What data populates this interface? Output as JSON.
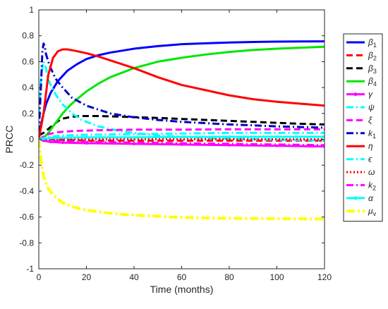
{
  "chart_data": {
    "type": "line",
    "title": "",
    "xlabel": "Time (months)",
    "ylabel": "PRCC",
    "xlim": [
      0,
      120
    ],
    "ylim": [
      -1,
      1
    ],
    "xticks": [
      0,
      20,
      40,
      60,
      80,
      100,
      120
    ],
    "yticks": [
      -1,
      -0.8,
      -0.6,
      -0.4,
      -0.2,
      0,
      0.2,
      0.4,
      0.6,
      0.8,
      1
    ],
    "xtick_labels": [
      "0",
      "20",
      "40",
      "60",
      "80",
      "100",
      "120"
    ],
    "ytick_labels": [
      "-1",
      "-0.8",
      "-0.6",
      "-0.4",
      "-0.2",
      "0",
      "0.2",
      "0.4",
      "0.6",
      "0.8",
      "1"
    ],
    "grid": false,
    "legend_position": "outside-right",
    "series": [
      {
        "name": "β1",
        "base": "β",
        "sub": "1",
        "color": "#0000ff",
        "style": "solid",
        "width": 3,
        "x": [
          0,
          1,
          2,
          3,
          5,
          8,
          12,
          16,
          20,
          25,
          30,
          40,
          50,
          60,
          70,
          80,
          90,
          100,
          110,
          120
        ],
        "y": [
          0.05,
          0.12,
          0.2,
          0.27,
          0.36,
          0.45,
          0.53,
          0.58,
          0.62,
          0.65,
          0.67,
          0.7,
          0.72,
          0.735,
          0.742,
          0.748,
          0.752,
          0.755,
          0.756,
          0.757
        ]
      },
      {
        "name": "β2",
        "base": "β",
        "sub": "2",
        "color": "#ff0000",
        "style": "dash",
        "width": 3,
        "x": [
          0,
          5,
          10,
          20,
          40,
          60,
          80,
          100,
          120
        ],
        "y": [
          0.0,
          0.0,
          -0.005,
          -0.01,
          -0.01,
          -0.01,
          -0.01,
          -0.01,
          -0.01
        ]
      },
      {
        "name": "β3",
        "base": "β",
        "sub": "3",
        "color": "#000000",
        "style": "dash",
        "width": 3,
        "x": [
          0,
          2,
          4,
          6,
          8,
          10,
          14,
          18,
          25,
          35,
          50,
          70,
          90,
          110,
          120
        ],
        "y": [
          0.03,
          0.05,
          0.08,
          0.11,
          0.14,
          0.16,
          0.175,
          0.18,
          0.18,
          0.175,
          0.165,
          0.15,
          0.135,
          0.12,
          0.115
        ]
      },
      {
        "name": "β4",
        "base": "β",
        "sub": "4",
        "color": "#00e600",
        "style": "solid",
        "width": 3,
        "x": [
          0,
          2,
          4,
          6,
          8,
          10,
          13,
          16,
          20,
          25,
          30,
          40,
          50,
          60,
          70,
          80,
          90,
          100,
          110,
          120
        ],
        "y": [
          0.0,
          0.01,
          0.05,
          0.1,
          0.15,
          0.2,
          0.26,
          0.31,
          0.37,
          0.43,
          0.48,
          0.55,
          0.6,
          0.63,
          0.655,
          0.675,
          0.69,
          0.7,
          0.708,
          0.715
        ]
      },
      {
        "name": "γ",
        "base": "γ",
        "sub": "",
        "color": "#ff00ff",
        "style": "solid-marker",
        "width": 3,
        "x": [
          0,
          2,
          5,
          10,
          20,
          40,
          60,
          80,
          100,
          120
        ],
        "y": [
          0.0,
          -0.01,
          -0.02,
          -0.025,
          -0.03,
          -0.035,
          -0.04,
          -0.045,
          -0.05,
          -0.055
        ]
      },
      {
        "name": "ψ",
        "base": "ψ",
        "sub": "",
        "color": "#00ffff",
        "style": "dashdot",
        "width": 3,
        "x": [
          0,
          1,
          2,
          3,
          4,
          6,
          8,
          10,
          14,
          18,
          25,
          35,
          50,
          70,
          90,
          120
        ],
        "y": [
          0.2,
          0.5,
          0.6,
          0.55,
          0.46,
          0.38,
          0.32,
          0.27,
          0.2,
          0.15,
          0.1,
          0.06,
          0.03,
          0.01,
          0.0,
          -0.01
        ]
      },
      {
        "name": "ξ",
        "base": "ξ",
        "sub": "",
        "color": "#ff00ff",
        "style": "dash",
        "width": 3,
        "x": [
          0,
          2,
          4,
          8,
          15,
          25,
          40,
          60,
          80,
          100,
          120
        ],
        "y": [
          0.0,
          0.02,
          0.04,
          0.055,
          0.065,
          0.07,
          0.075,
          0.075,
          0.078,
          0.078,
          0.078
        ]
      },
      {
        "name": "k1",
        "base": "k",
        "sub": "1",
        "color": "#0000cd",
        "style": "dashdot",
        "width": 3,
        "x": [
          0,
          1,
          1.5,
          2,
          2.5,
          3,
          4,
          5,
          7,
          10,
          14,
          20,
          30,
          40,
          50,
          60,
          70,
          80,
          90,
          100,
          110,
          120
        ],
        "y": [
          0.05,
          0.45,
          0.68,
          0.74,
          0.72,
          0.66,
          0.6,
          0.55,
          0.47,
          0.4,
          0.32,
          0.26,
          0.2,
          0.17,
          0.15,
          0.135,
          0.125,
          0.115,
          0.108,
          0.1,
          0.095,
          0.09
        ]
      },
      {
        "name": "η",
        "base": "η",
        "sub": "",
        "color": "#ff0000",
        "style": "solid",
        "width": 3,
        "x": [
          0,
          2,
          4,
          6,
          8,
          10,
          12,
          15,
          20,
          25,
          30,
          40,
          50,
          60,
          70,
          80,
          90,
          100,
          110,
          120
        ],
        "y": [
          0.0,
          0.2,
          0.5,
          0.63,
          0.68,
          0.695,
          0.695,
          0.685,
          0.665,
          0.64,
          0.61,
          0.55,
          0.48,
          0.42,
          0.38,
          0.34,
          0.31,
          0.29,
          0.275,
          0.26
        ]
      },
      {
        "name": "ϵ",
        "base": "ϵ",
        "sub": "",
        "color": "#00ffff",
        "style": "dashdot",
        "width": 3,
        "x": [
          0,
          2,
          5,
          10,
          20,
          40,
          60,
          80,
          100,
          120
        ],
        "y": [
          0.0,
          0.01,
          0.02,
          0.03,
          0.035,
          0.04,
          0.045,
          0.05,
          0.05,
          0.05
        ]
      },
      {
        "name": "ω",
        "base": "ω",
        "sub": "",
        "color": "#ff0000",
        "style": "dot",
        "width": 3,
        "x": [
          0,
          5,
          10,
          20,
          40,
          60,
          80,
          100,
          120
        ],
        "y": [
          0.0,
          0.0,
          0.0,
          0.0,
          0.0,
          0.0,
          0.0,
          0.0,
          0.0
        ]
      },
      {
        "name": "k2",
        "base": "k",
        "sub": "2",
        "color": "#ff00ff",
        "style": "dashdot",
        "width": 3,
        "x": [
          0,
          2,
          5,
          10,
          20,
          40,
          60,
          80,
          100,
          120
        ],
        "y": [
          0.0,
          -0.005,
          -0.01,
          -0.015,
          -0.02,
          -0.025,
          -0.03,
          -0.035,
          -0.04,
          -0.045
        ]
      },
      {
        "name": "α",
        "base": "α",
        "sub": "",
        "color": "#00ffff",
        "style": "solid-marker",
        "width": 3,
        "x": [
          0,
          2,
          5,
          10,
          20,
          40,
          60,
          80,
          100,
          120
        ],
        "y": [
          0.0,
          0.005,
          0.01,
          0.012,
          0.015,
          0.015,
          0.018,
          0.02,
          0.02,
          0.02
        ]
      },
      {
        "name": "μv",
        "base": "μ",
        "sub": "v",
        "color": "#ffff00",
        "style": "dashdot-thick",
        "width": 4,
        "x": [
          0,
          1,
          2,
          3,
          4,
          6,
          8,
          10,
          14,
          18,
          25,
          35,
          45,
          55,
          65,
          80,
          95,
          110,
          120
        ],
        "y": [
          0.0,
          -0.17,
          -0.28,
          -0.34,
          -0.38,
          -0.43,
          -0.46,
          -0.49,
          -0.52,
          -0.54,
          -0.56,
          -0.58,
          -0.59,
          -0.6,
          -0.605,
          -0.61,
          -0.612,
          -0.614,
          -0.615
        ]
      }
    ]
  }
}
